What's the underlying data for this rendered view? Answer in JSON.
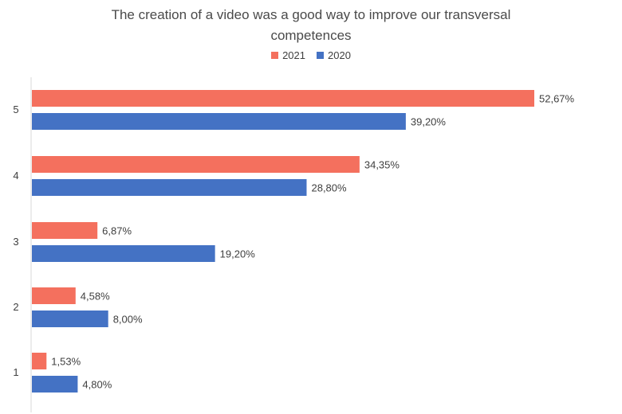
{
  "chart_data": {
    "type": "bar",
    "orientation": "horizontal",
    "title": "The creation of a video was a good way to improve our transversal competences",
    "categories": [
      "5",
      "4",
      "3",
      "2",
      "1"
    ],
    "series": [
      {
        "name": "2021",
        "color": "#F4705E",
        "values": [
          52.67,
          34.35,
          6.87,
          4.58,
          1.53
        ],
        "labels": [
          "52,67%",
          "34,35%",
          "6,87%",
          "4,58%",
          "1,53%"
        ]
      },
      {
        "name": "2020",
        "color": "#4472C4",
        "values": [
          39.2,
          28.8,
          19.2,
          8.0,
          4.8
        ],
        "labels": [
          "39,20%",
          "28,80%",
          "19,20%",
          "8,00%",
          "4,80%"
        ]
      }
    ],
    "xlim": [
      0,
      56
    ],
    "legend_position": "top-center",
    "grid": false,
    "axis_line_color": "#d9d9d9"
  }
}
